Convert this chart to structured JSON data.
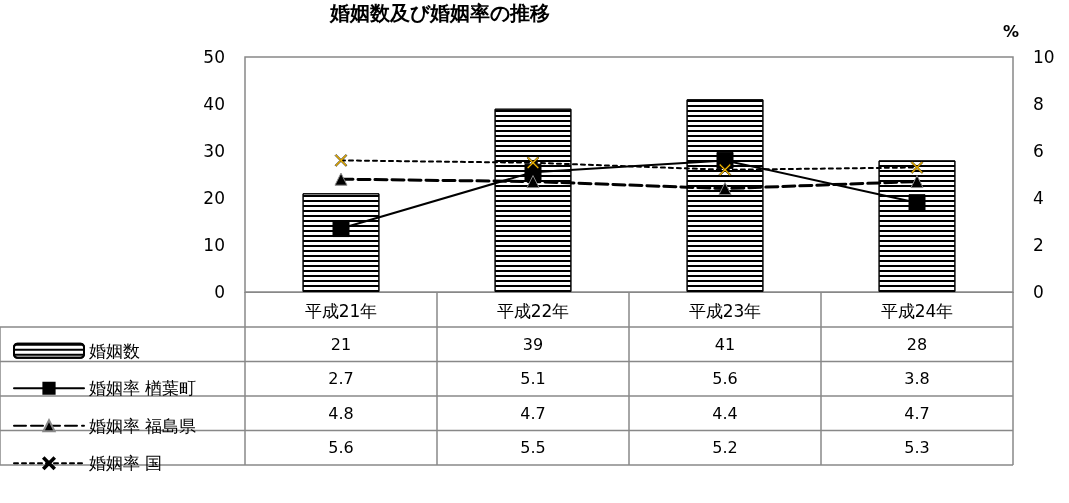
{
  "chart_data": {
    "type": "bar",
    "title": "婚姻数及び婚姻率の推移",
    "y2label": "%",
    "categories": [
      "平成21年",
      "平成22年",
      "平成23年",
      "平成24年"
    ],
    "series": [
      {
        "name": "婚姻数",
        "color": "#ffffff",
        "values": [
          21,
          39,
          41,
          28
        ]
      },
      {
        "name": "婚姻率 楢葉町",
        "type": "line",
        "axis": "y2",
        "color": "#000000",
        "marker": "square",
        "line_style": "solid",
        "values": [
          2.7,
          5.1,
          5.6,
          3.8
        ]
      },
      {
        "name": "婚姻率 福島県",
        "type": "line",
        "axis": "y2",
        "color": "#000000",
        "marker": "triangle",
        "line_style": "dashed",
        "values": [
          4.8,
          4.7,
          4.4,
          4.7
        ]
      },
      {
        "name": "婚姻率 国",
        "type": "line",
        "axis": "y2",
        "color": "#000000",
        "marker": "cross",
        "line_style": "dotted",
        "values": [
          5.6,
          5.5,
          5.2,
          5.3
        ]
      }
    ],
    "ylim": [
      0,
      50
    ],
    "yticks": [
      0,
      10,
      20,
      30,
      40,
      50
    ],
    "y2lim": [
      0,
      10
    ],
    "y2ticks": [
      0,
      2,
      4,
      6,
      8,
      10
    ],
    "grid": false,
    "legend": "bottom left",
    "data_labels": true
  }
}
